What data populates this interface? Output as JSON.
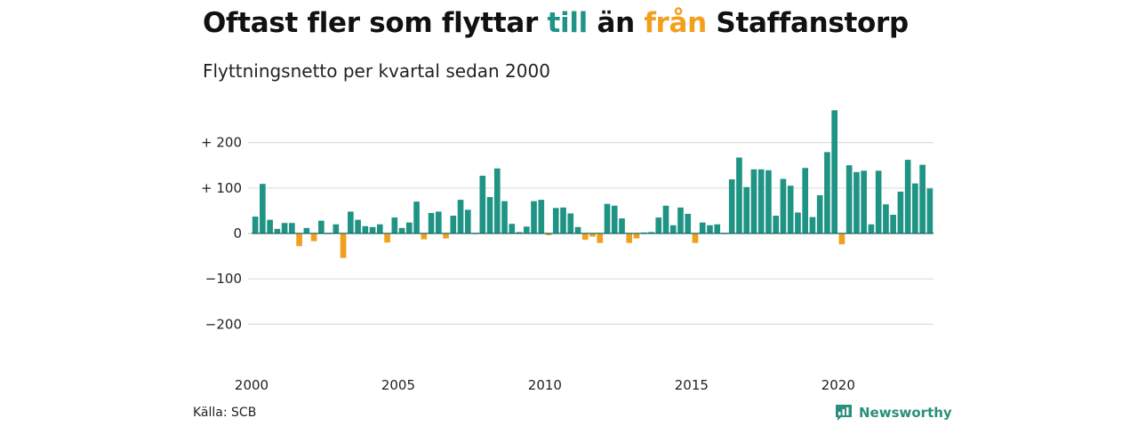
{
  "header": {
    "title_part1": "Oftast fler som flyttar ",
    "title_till": "till",
    "title_part2": " än ",
    "title_fran": "från",
    "title_part3": " Staffanstorp",
    "subtitle": "Flyttningsnetto per kvartal sedan 2000"
  },
  "footer": {
    "source": "Källa: SCB",
    "brand": "Newsworthy"
  },
  "colors": {
    "positive": "#1f9485",
    "negative": "#f29f1d",
    "till": "#1f9485",
    "fran": "#f29f1d",
    "grid": "#dddddd"
  },
  "icons": {
    "brand_logo": "newsworthy-logo-icon"
  },
  "chart_data": {
    "type": "bar",
    "title": "Oftast fler som flyttar till än från Staffanstorp",
    "subtitle": "Flyttningsnetto per kvartal sedan 2000",
    "x_start_year": 2000,
    "periods_per_year": 4,
    "x_ticks": [
      "2000",
      "2005",
      "2010",
      "2015",
      "2020"
    ],
    "y_ticks": [
      200,
      100,
      0,
      -100,
      -200
    ],
    "y_tick_labels": [
      "+ 200",
      "+ 100",
      "0",
      "−100",
      "−200"
    ],
    "ylim": [
      -240,
      280
    ],
    "grid": true,
    "values": [
      37,
      109,
      30,
      10,
      23,
      23,
      -28,
      12,
      -17,
      28,
      0,
      20,
      -54,
      48,
      30,
      16,
      14,
      20,
      -20,
      35,
      12,
      24,
      70,
      -13,
      45,
      48,
      -11,
      39,
      74,
      52,
      0,
      127,
      80,
      143,
      71,
      21,
      3,
      15,
      71,
      74,
      -4,
      56,
      57,
      44,
      14,
      -14,
      -7,
      -21,
      65,
      61,
      33,
      -21,
      -11,
      2,
      3,
      35,
      61,
      18,
      57,
      43,
      -21,
      24,
      18,
      20,
      0,
      119,
      167,
      102,
      141,
      141,
      139,
      39,
      120,
      105,
      46,
      144,
      36,
      84,
      179,
      271,
      -24,
      150,
      135,
      138,
      20,
      138,
      64,
      41,
      92,
      162,
      110,
      151,
      99
    ]
  }
}
